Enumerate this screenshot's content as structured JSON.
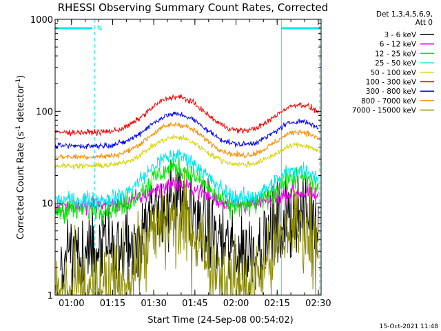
{
  "chart_data": {
    "type": "line",
    "title": "RHESSI Observing Summary Count Rates, Corrected",
    "xlabel": "Start Time (24-Sep-08 00:54:02)",
    "ylabel_prefix": "Corrected Count Rate (s",
    "ylabel_sup": "-1",
    "ylabel_mid": " detector",
    "ylabel_end": ")",
    "yscale": "log",
    "ylim": [
      1,
      1000
    ],
    "xlim_minutes": [
      0,
      97
    ],
    "x_ticks": [
      {
        "label": "01:00",
        "minute": 5.97
      },
      {
        "label": "01:15",
        "minute": 20.97
      },
      {
        "label": "01:30",
        "minute": 35.97
      },
      {
        "label": "01:45",
        "minute": 50.97
      },
      {
        "label": "02:00",
        "minute": 65.97
      },
      {
        "label": "02:15",
        "minute": 80.97
      },
      {
        "label": "02:30",
        "minute": 95.97
      }
    ],
    "y_ticks": [
      {
        "label": "1",
        "value": 1
      },
      {
        "label": "10",
        "value": 10
      },
      {
        "label": "100",
        "value": 100
      },
      {
        "label": "1000",
        "value": 1000
      }
    ],
    "legend_header": [
      "Det 1,3,4,5,6,9,",
      "Att 0"
    ],
    "legend_position": "right",
    "night_markers_minutes": [
      0,
      14.5,
      82.5,
      96.5
    ],
    "night_intervals_minutes": [
      [
        0,
        14.5
      ],
      [
        82.5,
        96.5
      ]
    ],
    "night_flag_label": "N",
    "night_color": "#00e5ee",
    "series": [
      {
        "name": "3 - 6 keV",
        "color": "#000000",
        "baseline": 2.8,
        "peaks": [
          9.5,
          7.5
        ],
        "noise": 0.22,
        "segments": [
          [
            2,
            96
          ]
        ]
      },
      {
        "name": "6 - 12 keV",
        "color": "#e600e6",
        "baseline": 9.5,
        "peaks": [
          16,
          13
        ],
        "noise": 0.045,
        "segments": [
          [
            0,
            96
          ]
        ]
      },
      {
        "name": "12 - 25 keV",
        "color": "#00e600",
        "baseline": 8.5,
        "peaks": [
          24,
          19
        ],
        "noise": 0.06,
        "segments": [
          [
            0,
            96
          ]
        ]
      },
      {
        "name": "25 - 50 keV",
        "color": "#00e5ee",
        "baseline": 10.8,
        "peaks": [
          33,
          23
        ],
        "noise": 0.045,
        "segments": [
          [
            0,
            96
          ]
        ]
      },
      {
        "name": "50 - 100 keV",
        "color": "#d4d400",
        "baseline": 25.5,
        "peaks": [
          52,
          43
        ],
        "noise": 0.015,
        "segments": [
          [
            0,
            96
          ]
        ]
      },
      {
        "name": "100 - 300 keV",
        "color": "#ff0000",
        "baseline": 59,
        "peaks": [
          143,
          118
        ],
        "noise": 0.015,
        "segments": [
          [
            0,
            96
          ]
        ]
      },
      {
        "name": "300 - 800 keV",
        "color": "#0000ff",
        "baseline": 42,
        "peaks": [
          93,
          78
        ],
        "noise": 0.015,
        "segments": [
          [
            0,
            96
          ]
        ]
      },
      {
        "name": "800 - 7000 keV",
        "color": "#ff8c00",
        "baseline": 32,
        "peaks": [
          72,
          60
        ],
        "noise": 0.015,
        "segments": [
          [
            0,
            96
          ]
        ]
      },
      {
        "name": "7000 - 15000 keV",
        "color": "#8b8b00",
        "baseline": 1.0,
        "peaks": [
          6.2,
          5.2
        ],
        "noise": 0.25,
        "segments": [
          [
            0,
            96
          ]
        ]
      }
    ],
    "peak_centers_minutes": [
      44,
      89
    ],
    "peak_widths_minutes": [
      8.5,
      7.5
    ]
  },
  "footer": {
    "timestamp": "15-Oct-2021 11:48"
  }
}
